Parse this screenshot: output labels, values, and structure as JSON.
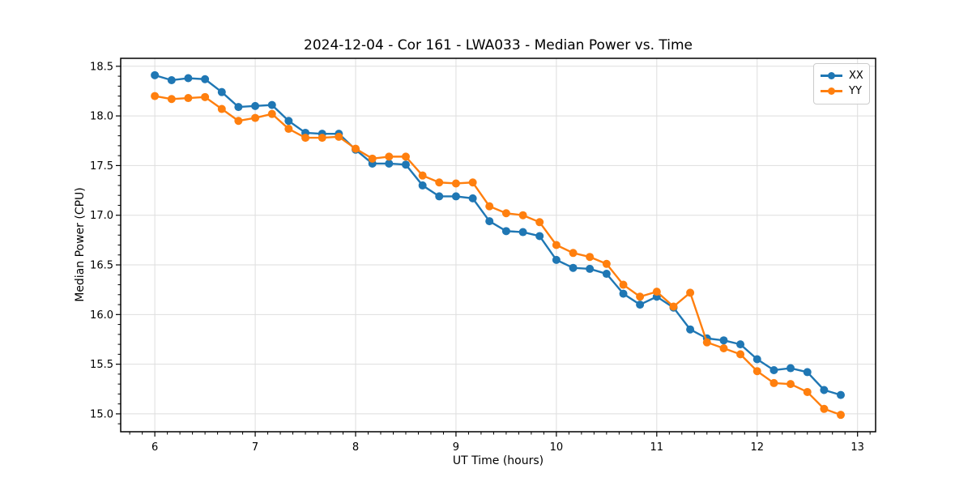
{
  "chart_data": {
    "type": "line",
    "title": "2024-12-04 - Cor 161 - LWA033 - Median Power vs. Time",
    "xlabel": "UT Time (hours)",
    "ylabel": "Median Power (CPU)",
    "xlim": [
      5.66,
      13.18
    ],
    "ylim": [
      14.82,
      18.58
    ],
    "x_ticks": [
      6,
      7,
      8,
      9,
      10,
      11,
      12,
      13
    ],
    "x_tick_labels": [
      "6",
      "7",
      "8",
      "9",
      "10",
      "11",
      "12",
      "13"
    ],
    "y_ticks": [
      15.0,
      15.5,
      16.0,
      16.5,
      17.0,
      17.5,
      18.0,
      18.5
    ],
    "y_tick_labels": [
      "15.0",
      "15.5",
      "16.0",
      "16.5",
      "17.0",
      "17.5",
      "18.0",
      "18.5"
    ],
    "x_minor_step": 0.125,
    "y_minor_step": 0.1,
    "grid": true,
    "legend_position": "upper right",
    "x": [
      6.0,
      6.167,
      6.333,
      6.5,
      6.667,
      6.833,
      7.0,
      7.167,
      7.333,
      7.5,
      7.667,
      7.833,
      8.0,
      8.167,
      8.333,
      8.5,
      8.667,
      8.833,
      9.0,
      9.167,
      9.333,
      9.5,
      9.667,
      9.833,
      10.0,
      10.167,
      10.333,
      10.5,
      10.667,
      10.833,
      11.0,
      11.167,
      11.333,
      11.5,
      11.667,
      11.833,
      12.0,
      12.167,
      12.333,
      12.5,
      12.667,
      12.833
    ],
    "series": [
      {
        "name": "XX",
        "color": "#1f77b4",
        "values": [
          18.41,
          18.36,
          18.38,
          18.37,
          18.24,
          18.09,
          18.1,
          18.11,
          17.95,
          17.83,
          17.82,
          17.82,
          17.66,
          17.52,
          17.52,
          17.51,
          17.3,
          17.19,
          17.19,
          17.17,
          16.94,
          16.84,
          16.83,
          16.79,
          16.55,
          16.47,
          16.46,
          16.41,
          16.21,
          16.1,
          16.18,
          16.07,
          15.85,
          15.76,
          15.74,
          15.7,
          15.55,
          15.44,
          15.46,
          15.42,
          15.24,
          15.19
        ]
      },
      {
        "name": "YY",
        "color": "#ff7f0e",
        "values": [
          18.2,
          18.17,
          18.18,
          18.19,
          18.07,
          17.95,
          17.98,
          18.02,
          17.87,
          17.78,
          17.78,
          17.79,
          17.67,
          17.57,
          17.59,
          17.59,
          17.4,
          17.33,
          17.32,
          17.33,
          17.09,
          17.02,
          17.0,
          16.93,
          16.7,
          16.62,
          16.58,
          16.51,
          16.3,
          16.18,
          16.23,
          16.08,
          16.22,
          15.72,
          15.66,
          15.6,
          15.43,
          15.31,
          15.3,
          15.22,
          15.05,
          14.99
        ]
      }
    ],
    "style": {
      "grid_color": "#dedede",
      "spine_color": "#000000",
      "tick_color": "#000000",
      "marker_radius": 5,
      "line_width": 2.4
    }
  }
}
